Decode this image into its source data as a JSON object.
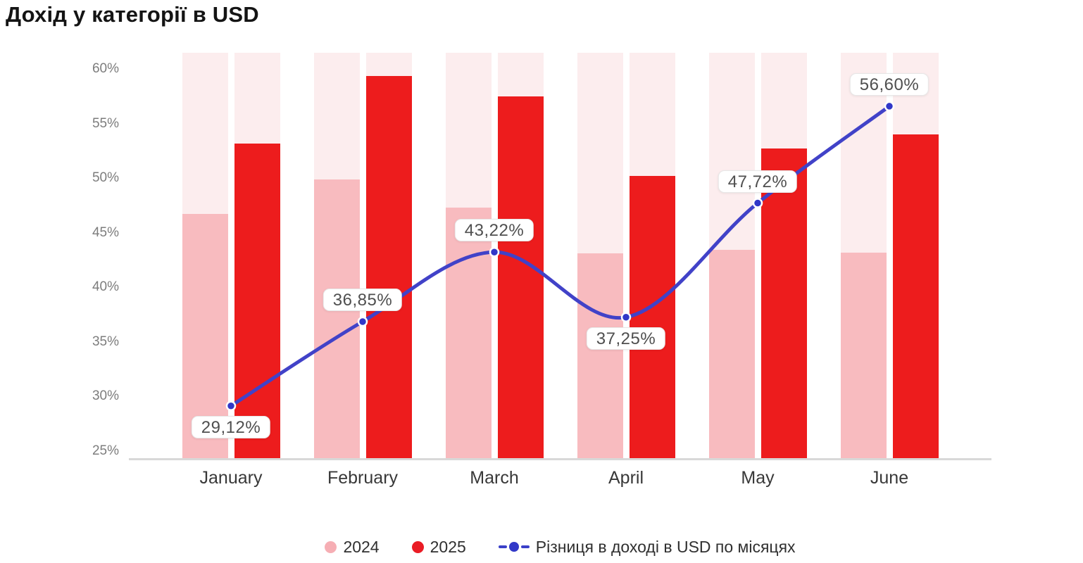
{
  "title": "Дохід у категорії в USD",
  "chart_data": {
    "type": "bar+line combo",
    "title": "Дохід у категорії в USD",
    "categories": [
      "January",
      "February",
      "March",
      "April",
      "May",
      "June"
    ],
    "series": [
      {
        "name": "2024",
        "kind": "bar",
        "color": "#f8bbbf",
        "values": [
          46.7,
          49.9,
          47.3,
          43.1,
          43.4,
          43.2
        ]
      },
      {
        "name": "2025",
        "kind": "bar",
        "color": "#ed1c1d",
        "values": [
          53.2,
          59.4,
          57.5,
          50.2,
          52.7,
          54.0
        ]
      },
      {
        "name": "Різниця в доході в USD по місяцях",
        "kind": "line",
        "color": "#4142c8",
        "dot_color": "#3137c8",
        "values": [
          29.12,
          36.85,
          43.22,
          37.25,
          47.72,
          56.6
        ],
        "point_labels": [
          "29,12%",
          "36,85%",
          "43,22%",
          "37,25%",
          "47,72%",
          "56,60%"
        ],
        "label_side": [
          "below",
          "above",
          "above",
          "below",
          "above",
          "above"
        ]
      }
    ],
    "y_axis": {
      "ticks": [
        25,
        30,
        35,
        40,
        45,
        50,
        55,
        60
      ],
      "tick_suffix": "%",
      "ylim": [
        24.2,
        61.5
      ]
    },
    "xlabel": "",
    "ylabel": "",
    "grid": "off",
    "legend_position": "bottom",
    "background_track_color": "#fcedee",
    "axis_line_color": "#d8d8d8"
  }
}
